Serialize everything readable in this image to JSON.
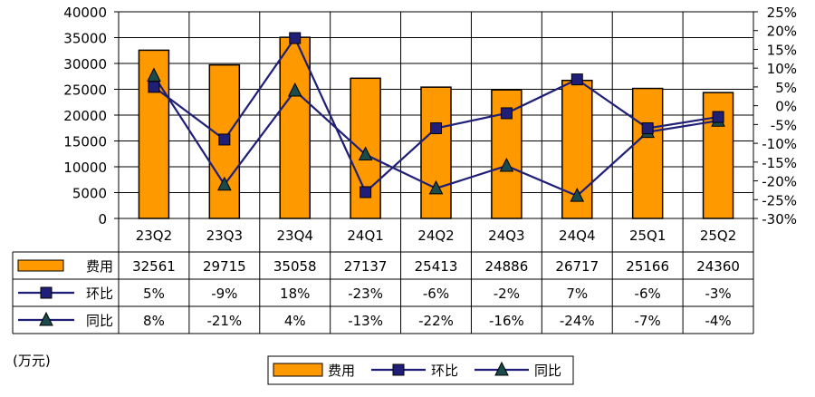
{
  "chart_data": {
    "type": "bar",
    "unit_label": "(万元)",
    "categories": [
      "23Q2",
      "23Q3",
      "23Q4",
      "24Q1",
      "24Q2",
      "24Q3",
      "24Q4",
      "25Q1",
      "25Q2"
    ],
    "ylim_left": [
      0,
      40000
    ],
    "left_ticks": [
      "40000",
      "35000",
      "30000",
      "25000",
      "20000",
      "15000",
      "10000",
      "5000",
      "0"
    ],
    "ylim_right": [
      -30,
      25
    ],
    "right_ticks": [
      "25%",
      "20%",
      "15%",
      "10%",
      "5%",
      "0%",
      "-5%",
      "-10%",
      "-15%",
      "-20%",
      "-25%",
      "-30%"
    ],
    "grid": true,
    "legend_position": "bottom",
    "series": [
      {
        "name": "费用",
        "kind": "bar",
        "axis": "left",
        "color": "#FF9900",
        "values": [
          32561,
          29715,
          35058,
          27137,
          25413,
          24886,
          26717,
          25166,
          24360
        ],
        "labels": [
          "32561",
          "29715",
          "35058",
          "27137",
          "25413",
          "24886",
          "26717",
          "25166",
          "24360"
        ]
      },
      {
        "name": "环比",
        "kind": "line",
        "axis": "right",
        "color": "#1F1F78",
        "marker": "square",
        "values": [
          5,
          -9,
          18,
          -23,
          -6,
          -2,
          7,
          -6,
          -3
        ],
        "labels": [
          "5%",
          "-9%",
          "18%",
          "-23%",
          "-6%",
          "-2%",
          "7%",
          "-6%",
          "-3%"
        ]
      },
      {
        "name": "同比",
        "kind": "line",
        "axis": "right",
        "color": "#1F1F78",
        "marker": "triangle",
        "values": [
          8,
          -21,
          4,
          -13,
          -22,
          -16,
          -24,
          -7,
          -4
        ],
        "labels": [
          "8%",
          "-21%",
          "4%",
          "-13%",
          "-22%",
          "-16%",
          "-24%",
          "-7%",
          "-4%"
        ]
      }
    ]
  }
}
